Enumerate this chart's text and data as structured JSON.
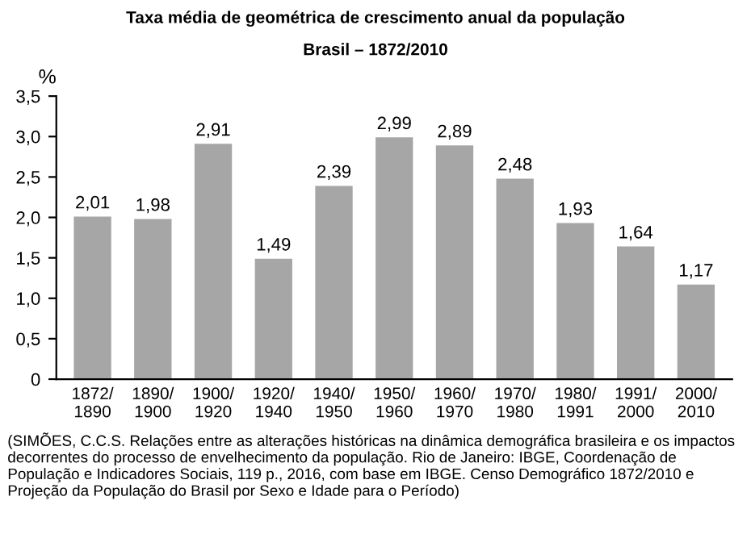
{
  "chart_data": {
    "type": "bar",
    "title": "Taxa média de geométrica de crescimento anual da população",
    "subtitle": "Brasil – 1872/2010",
    "ylabel": "%",
    "categories": [
      "1872/\n1890",
      "1890/\n1900",
      "1900/\n1920",
      "1920/\n1940",
      "1940/\n1950",
      "1950/\n1960",
      "1960/\n1970",
      "1970/\n1980",
      "1980/\n1991",
      "1991/\n2000",
      "2000/\n2010"
    ],
    "values": [
      2.01,
      1.98,
      2.91,
      1.49,
      2.39,
      2.99,
      2.89,
      2.48,
      1.93,
      1.64,
      1.17
    ],
    "value_labels": [
      "2,01",
      "1,98",
      "2,91",
      "1,49",
      "2,39",
      "2,99",
      "2,89",
      "2,48",
      "1,93",
      "1,64",
      "1,17"
    ],
    "color": "#a6a6a6",
    "ylim": [
      0,
      3.5
    ],
    "yticks": [
      0,
      {
        "value": 0.5,
        "label": "0,5"
      },
      {
        "value": 1.0,
        "label": "1,0"
      },
      {
        "value": 1.5,
        "label": "1,5"
      },
      {
        "value": 2.0,
        "label": "2,0"
      },
      {
        "value": 2.5,
        "label": "2,5"
      },
      {
        "value": 3.0,
        "label": "3,0"
      },
      {
        "value": 3.5,
        "label": "3,5"
      }
    ],
    "grid": false,
    "legend": false,
    "annotations": [
      "(SIMÕES, C.C.S. Relações entre as alterações históricas na dinâmica demográfica brasileira e os impactos decorrentes do processo de envelhecimento da população. Rio de Janeiro: IBGE, Coordenação de População e Indicadores Sociais, 119 p., 2016, com base em IBGE. Censo Demográfico 1872/2010 e Projeção da População do Brasil por Sexo e Idade para o Período)"
    ]
  }
}
